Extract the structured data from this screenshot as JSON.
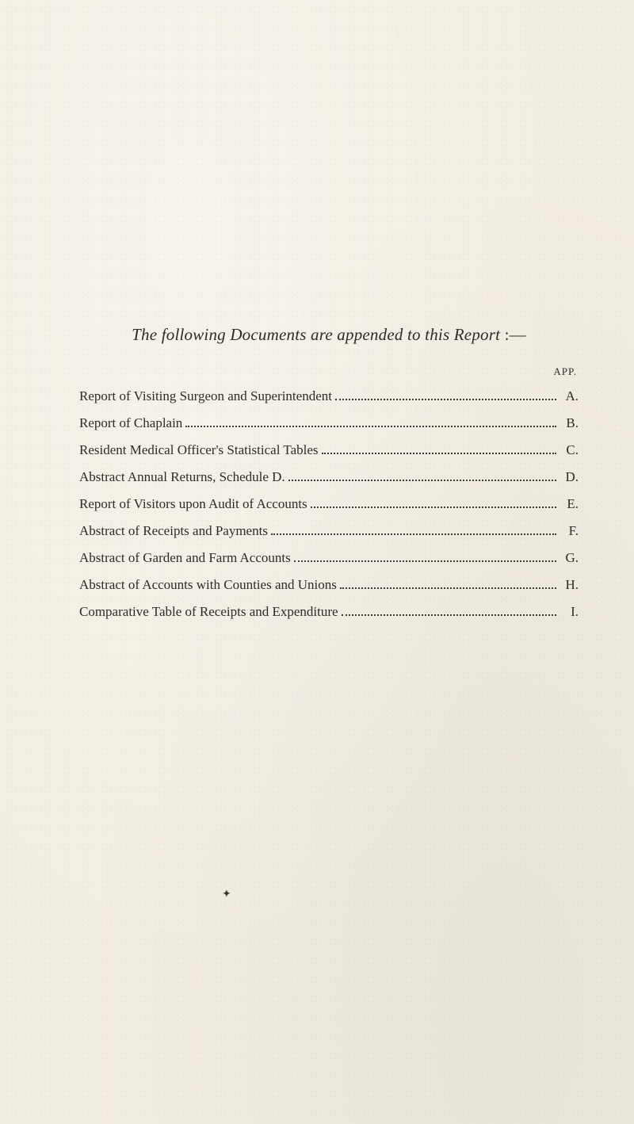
{
  "title_italic_prefix": "The following Documents are appended to this ",
  "title_italic_word": "Report",
  "title_suffix": " :—",
  "app_heading": "APP.",
  "toc": [
    {
      "label": "Report of Visiting Surgeon and Superintendent",
      "letter": "A."
    },
    {
      "label": "Report of Chaplain",
      "letter": "B."
    },
    {
      "label": "Resident Medical Officer's Statistical Tables",
      "letter": "C."
    },
    {
      "label": "Abstract Annual Returns, Schedule D.",
      "letter": "D."
    },
    {
      "label": "Report of Visitors upon Audit of Accounts",
      "letter": "E."
    },
    {
      "label": "Abstract of Receipts and Payments",
      "letter": "F."
    },
    {
      "label": "Abstract of Garden and Farm Accounts",
      "letter": "G."
    },
    {
      "label": "Abstract of Accounts with Counties and Unions",
      "letter": "H."
    },
    {
      "label": "Comparative Table of Receipts and Expenditure",
      "letter": "I."
    }
  ]
}
